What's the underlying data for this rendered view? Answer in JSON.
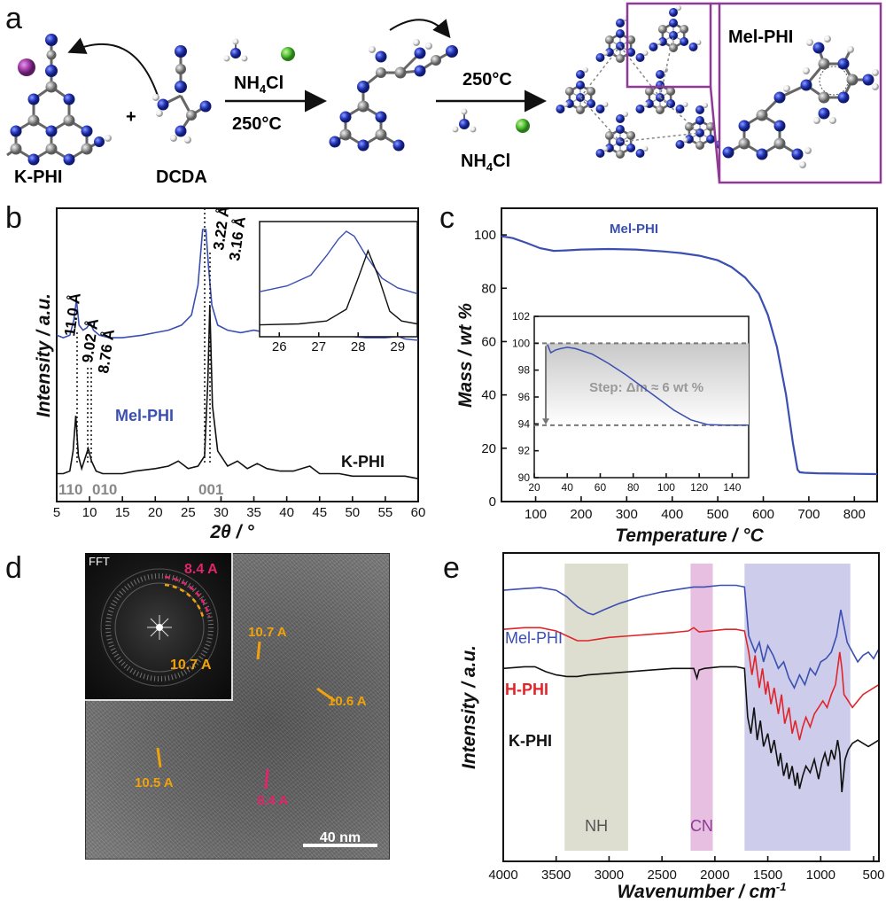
{
  "panel_a": {
    "letter": "a",
    "k_phi_label": "K-PHI",
    "dcda_label": "DCDA",
    "plus": "+",
    "step1_reagent": "NH",
    "step1_reagent_sub": "4",
    "step1_reagent_tail": "Cl",
    "step1_temp": "250°C",
    "step2_temp": "250°C",
    "step2_reagent": "NH",
    "step2_reagent_sub": "4",
    "step2_reagent_tail": "Cl",
    "product_label": "Mel-PHI",
    "colors": {
      "nitrogen": "#2a3cc0",
      "carbon": "#9a9a9a",
      "hydrogen": "#f2f2f2",
      "potassium": "#a23aa8",
      "chloride": "#58c43a",
      "frame": "#8e3a96"
    }
  },
  "panel_b": {
    "letter": "b",
    "chart_data": {
      "type": "line",
      "xlabel": "2θ / °",
      "ylabel": "Intensity / a.u.",
      "xlim": [
        5,
        60
      ],
      "xticks": [
        5,
        10,
        15,
        20,
        25,
        30,
        35,
        40,
        45,
        50,
        55,
        60
      ],
      "series": [
        {
          "name": "Mel-PHI",
          "color": "#3a4fb0",
          "x": [
            5,
            6,
            7,
            7.6,
            8.0,
            8.4,
            9,
            9.6,
            10.1,
            10.6,
            11.5,
            13,
            15,
            18,
            20,
            22,
            24,
            25.5,
            26.5,
            27.2,
            27.7,
            28.1,
            28.6,
            29.5,
            31,
            33,
            35,
            37,
            40,
            43,
            45,
            48,
            50,
            52,
            55,
            57,
            58,
            60
          ],
          "y": [
            0.58,
            0.57,
            0.58,
            0.64,
            0.72,
            0.62,
            0.6,
            0.61,
            0.63,
            0.6,
            0.58,
            0.57,
            0.57,
            0.58,
            0.59,
            0.6,
            0.62,
            0.66,
            0.78,
            1.0,
            1.0,
            0.85,
            0.7,
            0.62,
            0.6,
            0.59,
            0.6,
            0.59,
            0.58,
            0.59,
            0.58,
            0.58,
            0.575,
            0.57,
            0.57,
            0.575,
            0.565,
            0.56
          ]
        },
        {
          "name": "K-PHI",
          "color": "#111111",
          "x": [
            5,
            6,
            7,
            7.5,
            7.9,
            8.3,
            8.8,
            9.3,
            9.8,
            10.3,
            11,
            12,
            13,
            15,
            17,
            20,
            22,
            23.5,
            25,
            26.5,
            27.5,
            28.0,
            28.3,
            28.7,
            29.5,
            31,
            32.5,
            34,
            35.5,
            37,
            39,
            41,
            43.5,
            45,
            48,
            50,
            53,
            55,
            58,
            60
          ],
          "y": [
            0.03,
            0.03,
            0.04,
            0.12,
            0.26,
            0.1,
            0.05,
            0.09,
            0.13,
            0.08,
            0.04,
            0.03,
            0.03,
            0.03,
            0.04,
            0.05,
            0.06,
            0.08,
            0.05,
            0.06,
            0.1,
            0.4,
            0.7,
            0.3,
            0.12,
            0.06,
            0.08,
            0.05,
            0.07,
            0.05,
            0.04,
            0.04,
            0.06,
            0.03,
            0.03,
            0.02,
            0.02,
            0.02,
            0.02,
            0.01
          ]
        }
      ],
      "annotations": [
        "11.0 Å",
        "9.02 Å",
        "8.76 Å",
        "3.22 Å",
        "3.16 Å"
      ],
      "reflections": [
        "110",
        "010",
        "001"
      ],
      "series_labels": [
        "Mel-PHI",
        "K-PHI"
      ],
      "inset": {
        "xlim": [
          25.5,
          29.5
        ],
        "xticks": [
          26,
          27,
          28,
          29
        ],
        "series": [
          {
            "name": "Mel-PHI",
            "x": [
              25.5,
              26.2,
              26.8,
              27.2,
              27.5,
              27.7,
              27.9,
              28.2,
              28.6,
              29.0,
              29.5
            ],
            "y": [
              0.38,
              0.44,
              0.55,
              0.75,
              0.92,
              1.0,
              0.95,
              0.75,
              0.52,
              0.42,
              0.36
            ]
          },
          {
            "name": "K-PHI",
            "x": [
              25.5,
              26.5,
              27.2,
              27.7,
              28.0,
              28.25,
              28.5,
              28.8,
              29.1,
              29.5
            ],
            "y": [
              0.04,
              0.05,
              0.08,
              0.2,
              0.52,
              0.8,
              0.55,
              0.18,
              0.08,
              0.05
            ]
          }
        ]
      }
    }
  },
  "panel_c": {
    "letter": "c",
    "chart_data": {
      "type": "line",
      "title": "Mel-PHI",
      "xlabel": "Temperature / °C",
      "ylabel": "Mass / wt %",
      "xlim": [
        25,
        850
      ],
      "ylim": [
        0,
        110
      ],
      "xticks": [
        100,
        200,
        300,
        400,
        500,
        600,
        700,
        800
      ],
      "yticks": [
        0,
        20,
        40,
        60,
        80,
        100
      ],
      "series": [
        {
          "name": "Mel-PHI",
          "color": "#3a4fb0",
          "x": [
            25,
            50,
            80,
            110,
            140,
            170,
            200,
            260,
            320,
            380,
            420,
            460,
            500,
            530,
            560,
            590,
            610,
            630,
            650,
            665,
            675,
            680,
            690,
            720,
            760,
            800,
            850
          ],
          "y": [
            99.5,
            98.8,
            97,
            95,
            94,
            94.2,
            94.5,
            94.7,
            94.5,
            93.8,
            93.2,
            92.2,
            90.5,
            88,
            84,
            78,
            70,
            58,
            40,
            22,
            12,
            11,
            10.8,
            10.6,
            10.5,
            10.4,
            10.3
          ]
        }
      ],
      "inset": {
        "xlim": [
          20,
          150
        ],
        "ylim": [
          90,
          102
        ],
        "xticks": [
          20,
          40,
          60,
          80,
          100,
          120,
          140
        ],
        "yticks": [
          90,
          92,
          94,
          96,
          98,
          100,
          102
        ],
        "label": "Step: Δm ≈ 6 wt %",
        "series": [
          {
            "name": "Mel-PHI",
            "x": [
              28,
              30,
              33,
              36,
              40,
              45,
              55,
              65,
              75,
              85,
              95,
              105,
              115,
              125,
              135,
              150
            ],
            "y": [
              99.9,
              99.3,
              99.5,
              99.6,
              99.7,
              99.6,
              99.2,
              98.5,
              97.7,
              96.8,
              95.9,
              95.0,
              94.3,
              93.95,
              93.9,
              93.9
            ]
          }
        ]
      }
    }
  },
  "panel_d": {
    "letter": "d",
    "fft_label": "FFT",
    "fft_inner": "8.4 A",
    "fft_outer": "10.7 A",
    "labels": [
      "10.7 A",
      "10.6 A",
      "10.5 A",
      "8.4 A"
    ],
    "scale_bar": "40 nm",
    "colors": {
      "orange": "#f0a20c",
      "pink": "#e0256a"
    }
  },
  "panel_e": {
    "letter": "e",
    "chart_data": {
      "type": "line",
      "xlabel": "Wavenumber / cm",
      "xlabel_sup": "-1",
      "ylabel": "Intensity / a.u.",
      "xlim": [
        4000,
        450
      ],
      "xticks": [
        4000,
        3500,
        3000,
        2500,
        2000,
        1500,
        1000,
        500
      ],
      "bands": [
        {
          "label": "NH",
          "from": 3420,
          "to": 2820,
          "color": "#d8d8c8"
        },
        {
          "label": "CN",
          "from": 2230,
          "to": 2020,
          "color": "#e2b4dc"
        },
        {
          "label": "",
          "from": 1720,
          "to": 720,
          "color": "#c4c4e8"
        }
      ],
      "series": [
        {
          "name": "Mel-PHI",
          "color": "#3a4fb0",
          "x": [
            4000,
            3800,
            3650,
            3500,
            3400,
            3300,
            3200,
            3150,
            3050,
            2900,
            2700,
            2500,
            2300,
            2200,
            2100,
            1950,
            1800,
            1720,
            1680,
            1620,
            1580,
            1540,
            1500,
            1450,
            1400,
            1350,
            1300,
            1250,
            1200,
            1150,
            1100,
            1050,
            1000,
            950,
            900,
            850,
            810,
            780,
            750,
            700,
            650,
            600,
            550,
            500,
            450
          ],
          "y": [
            0.74,
            0.745,
            0.748,
            0.74,
            0.72,
            0.69,
            0.67,
            0.665,
            0.68,
            0.7,
            0.72,
            0.735,
            0.745,
            0.75,
            0.75,
            0.755,
            0.755,
            0.75,
            0.6,
            0.55,
            0.58,
            0.52,
            0.57,
            0.54,
            0.5,
            0.52,
            0.47,
            0.44,
            0.48,
            0.45,
            0.5,
            0.48,
            0.52,
            0.53,
            0.55,
            0.6,
            0.68,
            0.63,
            0.58,
            0.55,
            0.52,
            0.54,
            0.55,
            0.53,
            0.56
          ]
        },
        {
          "name": "H-PHI",
          "color": "#e0252a",
          "x": [
            4000,
            3800,
            3650,
            3500,
            3400,
            3300,
            3200,
            3100,
            3000,
            2800,
            2600,
            2400,
            2250,
            2200,
            2150,
            2050,
            1900,
            1800,
            1720,
            1680,
            1650,
            1620,
            1580,
            1550,
            1520,
            1500,
            1470,
            1440,
            1400,
            1370,
            1340,
            1300,
            1270,
            1240,
            1200,
            1170,
            1140,
            1100,
            1060,
            1020,
            980,
            940,
            900,
            860,
            820,
            800,
            780,
            740,
            700,
            650,
            600,
            550,
            500,
            450
          ],
          "y": [
            0.62,
            0.625,
            0.625,
            0.615,
            0.6,
            0.585,
            0.585,
            0.59,
            0.595,
            0.6,
            0.605,
            0.61,
            0.615,
            0.625,
            0.612,
            0.615,
            0.62,
            0.62,
            0.615,
            0.55,
            0.48,
            0.54,
            0.44,
            0.5,
            0.42,
            0.46,
            0.39,
            0.44,
            0.36,
            0.42,
            0.33,
            0.38,
            0.3,
            0.34,
            0.28,
            0.32,
            0.35,
            0.32,
            0.36,
            0.38,
            0.4,
            0.38,
            0.42,
            0.45,
            0.55,
            0.5,
            0.42,
            0.4,
            0.38,
            0.4,
            0.42,
            0.43,
            0.44,
            0.45
          ]
        },
        {
          "name": "K-PHI",
          "color": "#111111",
          "x": [
            4000,
            3800,
            3700,
            3600,
            3500,
            3400,
            3300,
            3200,
            3000,
            2800,
            2600,
            2400,
            2250,
            2200,
            2170,
            2150,
            2100,
            1950,
            1800,
            1720,
            1690,
            1660,
            1630,
            1600,
            1570,
            1540,
            1500,
            1470,
            1440,
            1400,
            1380,
            1350,
            1320,
            1300,
            1270,
            1240,
            1220,
            1200,
            1170,
            1140,
            1100,
            1060,
            1020,
            990,
            960,
            930,
            900,
            870,
            840,
            820,
            800,
            770,
            740,
            700,
            650,
            600,
            550,
            500,
            450
          ],
          "y": [
            0.5,
            0.505,
            0.505,
            0.49,
            0.48,
            0.475,
            0.475,
            0.48,
            0.485,
            0.49,
            0.495,
            0.5,
            0.5,
            0.5,
            0.47,
            0.495,
            0.5,
            0.505,
            0.505,
            0.5,
            0.35,
            0.3,
            0.38,
            0.28,
            0.34,
            0.26,
            0.3,
            0.24,
            0.28,
            0.2,
            0.24,
            0.17,
            0.21,
            0.16,
            0.2,
            0.14,
            0.18,
            0.13,
            0.17,
            0.2,
            0.18,
            0.22,
            0.16,
            0.21,
            0.24,
            0.2,
            0.25,
            0.22,
            0.28,
            0.24,
            0.12,
            0.22,
            0.25,
            0.27,
            0.28,
            0.27,
            0.26,
            0.27,
            0.28
          ]
        }
      ],
      "series_labels": [
        "Mel-PHI",
        "H-PHI",
        "K-PHI"
      ]
    }
  }
}
